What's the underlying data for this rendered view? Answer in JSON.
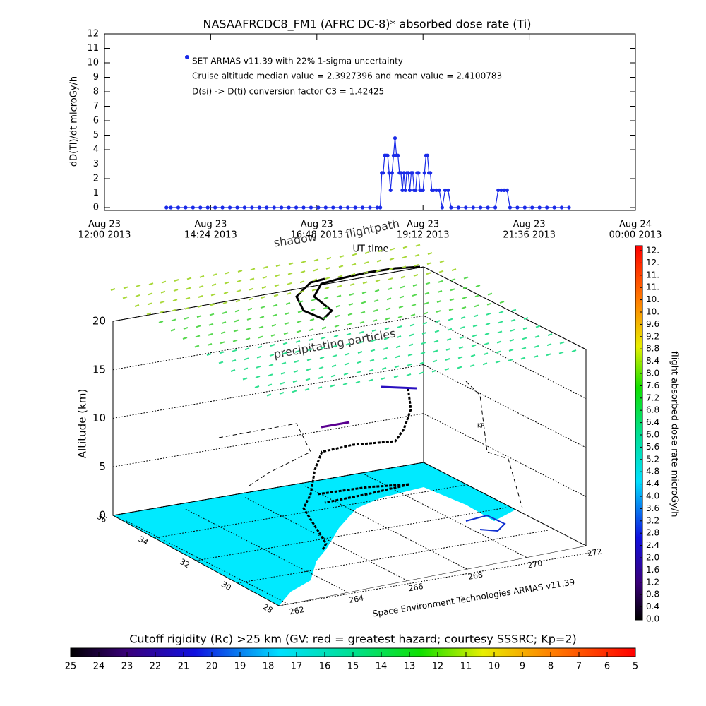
{
  "chart_data": [
    {
      "type": "line",
      "title": "NASAAFRCDC8_FM1 (AFRC DC-8)* absorbed dose rate (Ti)",
      "xlabel": "UT time",
      "ylabel": "dD(Ti)/dt microGy/h",
      "annotations": [
        "SET ARMAS v11.39 with 22% 1-sigma uncertainty",
        "Cruise altitude median value = 2.3927396 and mean value = 2.4100783",
        "D(si) -> D(ti) conversion factor C3 = 1.42425"
      ],
      "color": "#1a2be8",
      "xlim": [
        "2013-08-23 12:00",
        "2013-08-24 00:00"
      ],
      "xticks": [
        {
          "value": "2013-08-23 12:00",
          "label": [
            "Aug 23",
            "12:00 2013"
          ]
        },
        {
          "value": "2013-08-23 14:24",
          "label": [
            "Aug 23",
            "14:24 2013"
          ]
        },
        {
          "value": "2013-08-23 16:48",
          "label": [
            "Aug 23",
            "16:48 2013"
          ]
        },
        {
          "value": "2013-08-23 19:12",
          "label": [
            "Aug 23",
            "19:12 2013"
          ]
        },
        {
          "value": "2013-08-23 21:36",
          "label": [
            "Aug 23",
            "21:36 2013"
          ]
        },
        {
          "value": "2013-08-24 00:00",
          "label": [
            "Aug 24",
            "00:00 2013"
          ]
        }
      ],
      "ylim": [
        0,
        12
      ],
      "yticks": [
        0,
        1,
        2,
        3,
        4,
        5,
        6,
        7,
        8,
        9,
        10,
        11,
        12
      ],
      "x": [
        "2013-08-23 13:24",
        "2013-08-23 13:30",
        "2013-08-23 13:40",
        "2013-08-23 13:50",
        "2013-08-23 14:00",
        "2013-08-23 14:10",
        "2013-08-23 14:20",
        "2013-08-23 14:30",
        "2013-08-23 14:40",
        "2013-08-23 14:50",
        "2013-08-23 15:00",
        "2013-08-23 15:10",
        "2013-08-23 15:20",
        "2013-08-23 15:30",
        "2013-08-23 15:40",
        "2013-08-23 15:50",
        "2013-08-23 16:00",
        "2013-08-23 16:10",
        "2013-08-23 16:20",
        "2013-08-23 16:30",
        "2013-08-23 16:40",
        "2013-08-23 16:50",
        "2013-08-23 17:00",
        "2013-08-23 17:10",
        "2013-08-23 17:20",
        "2013-08-23 17:30",
        "2013-08-23 17:40",
        "2013-08-23 17:50",
        "2013-08-23 18:00",
        "2013-08-23 18:10",
        "2013-08-23 18:14",
        "2013-08-23 18:16",
        "2013-08-23 18:18",
        "2013-08-23 18:20",
        "2013-08-23 18:22",
        "2013-08-23 18:24",
        "2013-08-23 18:26",
        "2013-08-23 18:28",
        "2013-08-23 18:30",
        "2013-08-23 18:32",
        "2013-08-23 18:34",
        "2013-08-23 18:36",
        "2013-08-23 18:38",
        "2013-08-23 18:40",
        "2013-08-23 18:42",
        "2013-08-23 18:44",
        "2013-08-23 18:46",
        "2013-08-23 18:48",
        "2013-08-23 18:50",
        "2013-08-23 18:52",
        "2013-08-23 18:54",
        "2013-08-23 18:56",
        "2013-08-23 18:58",
        "2013-08-23 19:00",
        "2013-08-23 19:02",
        "2013-08-23 19:04",
        "2013-08-23 19:06",
        "2013-08-23 19:08",
        "2013-08-23 19:10",
        "2013-08-23 19:12",
        "2013-08-23 19:14",
        "2013-08-23 19:16",
        "2013-08-23 19:18",
        "2013-08-23 19:20",
        "2013-08-23 19:22",
        "2013-08-23 19:24",
        "2013-08-23 19:26",
        "2013-08-23 19:30",
        "2013-08-23 19:34",
        "2013-08-23 19:38",
        "2013-08-23 19:42",
        "2013-08-23 19:46",
        "2013-08-23 19:50",
        "2013-08-23 20:00",
        "2013-08-23 20:10",
        "2013-08-23 20:20",
        "2013-08-23 20:30",
        "2013-08-23 20:40",
        "2013-08-23 20:50",
        "2013-08-23 20:54",
        "2013-08-23 20:58",
        "2013-08-23 21:02",
        "2013-08-23 21:06",
        "2013-08-23 21:10",
        "2013-08-23 21:20",
        "2013-08-23 21:30",
        "2013-08-23 21:40",
        "2013-08-23 21:50",
        "2013-08-23 22:00",
        "2013-08-23 22:10",
        "2013-08-23 22:20",
        "2013-08-23 22:30"
      ],
      "values": [
        0,
        0,
        0,
        0,
        0,
        0,
        0,
        0,
        0,
        0,
        0,
        0,
        0,
        0,
        0,
        0,
        0,
        0,
        0,
        0,
        0,
        0,
        0,
        0,
        0,
        0,
        0,
        0,
        0,
        0,
        0,
        2.4,
        2.4,
        3.6,
        3.6,
        3.6,
        2.4,
        1.2,
        2.4,
        3.6,
        4.8,
        3.6,
        3.6,
        2.4,
        2.4,
        1.2,
        2.4,
        1.2,
        2.4,
        2.4,
        1.2,
        2.4,
        2.4,
        1.2,
        1.2,
        2.4,
        2.4,
        1.2,
        1.2,
        1.2,
        2.4,
        3.6,
        3.6,
        2.4,
        2.4,
        1.2,
        1.2,
        1.2,
        1.2,
        0,
        1.2,
        1.2,
        0,
        0,
        0,
        0,
        0,
        0,
        0,
        1.2,
        1.2,
        1.2,
        1.2,
        0,
        0,
        0,
        0,
        0,
        0,
        0,
        0,
        0
      ]
    },
    {
      "type": "colorbar",
      "label": "flight absorbed dose rate microGy/h",
      "ylim": [
        0,
        12
      ],
      "yticks": [
        {
          "value": 0,
          "label": "0.0"
        },
        0.4,
        0.8,
        1.2,
        1.6,
        {
          "value": 2,
          "label": "2.0"
        },
        2.4,
        2.8,
        3.2,
        3.6,
        {
          "value": 4,
          "label": "4.0"
        },
        4.4,
        4.8,
        5.2,
        5.6,
        {
          "value": 6,
          "label": "6.0"
        },
        6.4,
        6.8,
        7.2,
        7.6,
        {
          "value": 8,
          "label": "8.0"
        },
        8.4,
        8.8,
        9.2,
        9.6,
        {
          "value": 10,
          "label": "10."
        },
        {
          "value": 10.4,
          "label": "10."
        },
        {
          "value": 10.8,
          "label": "11."
        },
        {
          "value": 11.2,
          "label": "11."
        },
        {
          "value": 11.6,
          "label": "12."
        },
        {
          "value": 12,
          "label": "12."
        }
      ]
    },
    {
      "type": "colorbar",
      "label": "Cutoff rigidity (Rc) >25 km (GV: red = greatest hazard; courtesy SSSRC; Kp=2)",
      "xlim": [
        25,
        5
      ],
      "xticks": [
        25,
        24,
        23,
        22,
        21,
        20,
        19,
        18,
        17,
        16,
        15,
        14,
        13,
        12,
        11,
        10,
        9,
        8,
        7,
        6,
        5
      ]
    },
    {
      "type": "map3d",
      "zlabel": "Altitude (km)",
      "zlim": [
        0,
        20
      ],
      "zticks": [
        0,
        5,
        10,
        15,
        20
      ],
      "latticks": [
        36,
        34,
        32,
        30,
        28
      ],
      "lonticks": [
        262,
        264,
        266,
        268,
        270,
        272
      ],
      "annotations": [
        "shadow",
        "flightpath",
        "precipitating particles",
        "Space Environment Technologies ARMAS v11.39",
        "KP"
      ]
    }
  ]
}
